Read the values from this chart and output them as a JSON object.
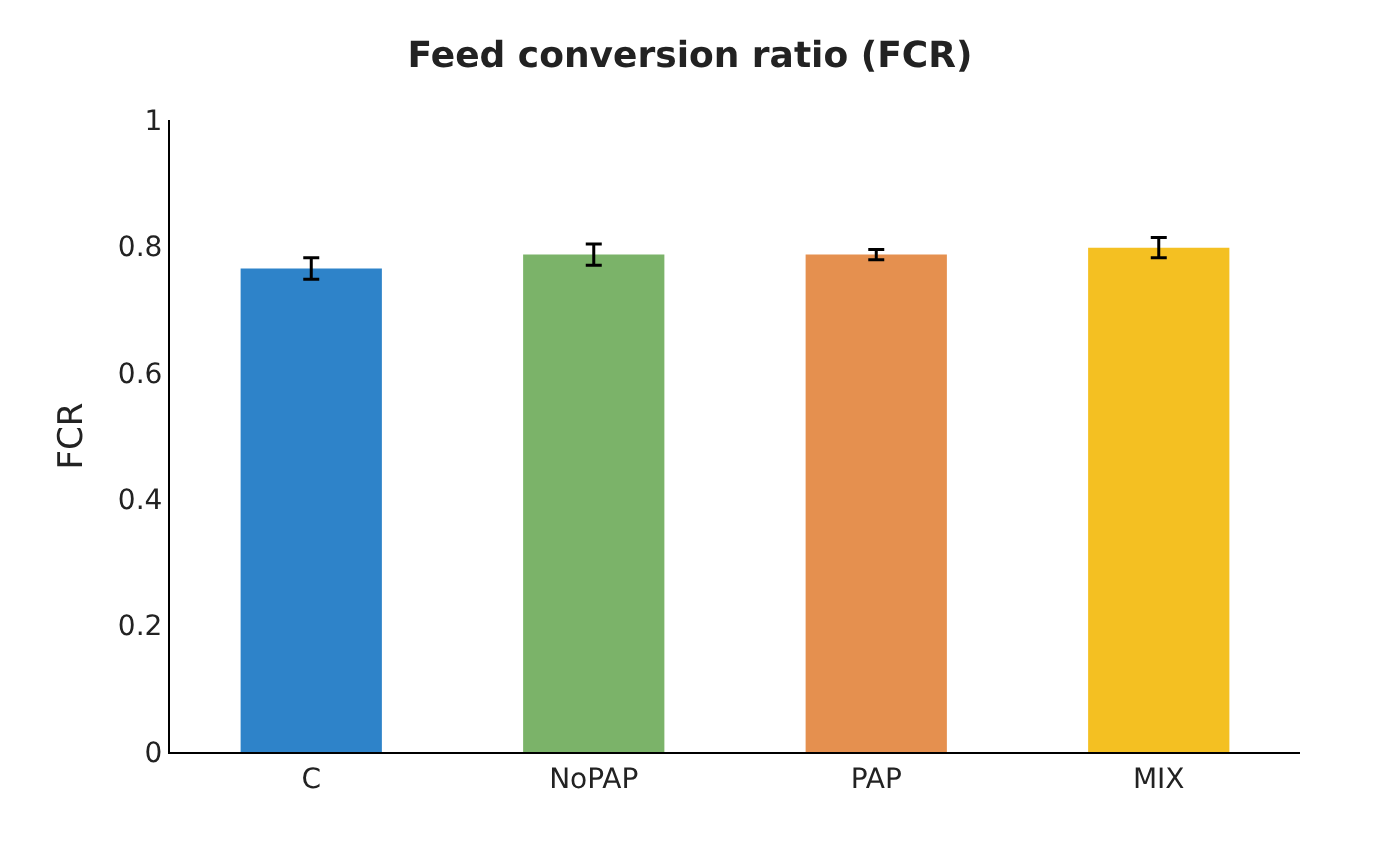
{
  "chart_data": {
    "type": "bar",
    "title": "Feed conversion ratio (FCR)",
    "ylabel": "FCR",
    "categories": [
      "C",
      "NoPAP",
      "PAP",
      "MIX"
    ],
    "values": [
      0.765,
      0.787,
      0.787,
      0.798
    ],
    "colors": [
      "#2e83c9",
      "#7bb369",
      "#e5904f",
      "#f4c022"
    ],
    "errors": [
      0.017,
      0.017,
      0.008,
      0.016
    ],
    "ylim": [
      0,
      1
    ],
    "yticks": [
      0,
      0.2,
      0.4,
      0.6,
      0.8,
      1
    ],
    "grid": false
  }
}
